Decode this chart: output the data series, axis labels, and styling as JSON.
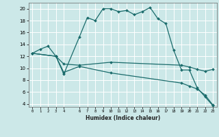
{
  "xlabel": "Humidex (Indice chaleur)",
  "background_color": "#cce8e8",
  "grid_color": "#ffffff",
  "line_color": "#1a6b6b",
  "xlim": [
    -0.5,
    23.5
  ],
  "ylim": [
    3.5,
    21
  ],
  "yticks": [
    4,
    6,
    8,
    10,
    12,
    14,
    16,
    18,
    20
  ],
  "xticks": [
    0,
    1,
    2,
    3,
    4,
    6,
    7,
    8,
    9,
    10,
    11,
    12,
    13,
    14,
    15,
    16,
    17,
    18,
    19,
    20,
    21,
    22,
    23
  ],
  "series1_x": [
    0,
    1,
    2,
    3,
    4,
    6,
    7,
    8,
    9,
    10,
    11,
    12,
    13,
    14,
    15,
    16,
    17,
    18,
    19,
    20,
    21,
    22,
    23
  ],
  "series1_y": [
    12.5,
    13.2,
    13.7,
    12.0,
    9.0,
    15.3,
    18.5,
    18.0,
    20.0,
    20.0,
    19.5,
    19.7,
    19.0,
    19.5,
    20.2,
    18.3,
    17.5,
    13.0,
    9.7,
    9.7,
    6.7,
    5.2,
    3.7
  ],
  "series2_x": [
    0,
    3,
    4,
    6,
    10,
    19,
    20,
    21,
    22,
    23
  ],
  "series2_y": [
    12.5,
    12.0,
    10.7,
    10.5,
    11.0,
    10.5,
    10.2,
    9.8,
    9.5,
    9.8
  ],
  "series3_x": [
    0,
    3,
    4,
    6,
    10,
    19,
    20,
    21,
    22,
    23
  ],
  "series3_y": [
    12.5,
    12.0,
    9.3,
    10.3,
    9.2,
    7.5,
    7.0,
    6.5,
    5.5,
    3.8
  ]
}
